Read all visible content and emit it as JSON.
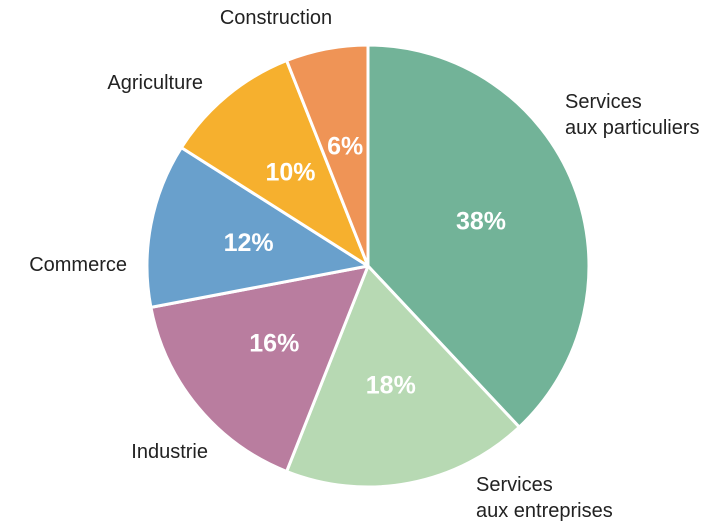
{
  "chart_data": {
    "type": "pie",
    "unit": "%",
    "slices": [
      {
        "label": [
          "Services",
          "aux particuliers"
        ],
        "value": 38,
        "value_label": "38%",
        "color": "#72b398"
      },
      {
        "label": [
          "Services",
          "aux entreprises"
        ],
        "value": 18,
        "value_label": "18%",
        "color": "#b7d9b3"
      },
      {
        "label": [
          "Industrie"
        ],
        "value": 16,
        "value_label": "16%",
        "color": "#b97d9f"
      },
      {
        "label": [
          "Commerce"
        ],
        "value": 12,
        "value_label": "12%",
        "color": "#69a0cc"
      },
      {
        "label": [
          "Agriculture"
        ],
        "value": 10,
        "value_label": "10%",
        "color": "#f6b02e"
      },
      {
        "label": [
          "Construction"
        ],
        "value": 6,
        "value_label": "6%",
        "color": "#ef9456"
      }
    ],
    "start": "top",
    "direction": "clockwise",
    "legend": "none"
  }
}
